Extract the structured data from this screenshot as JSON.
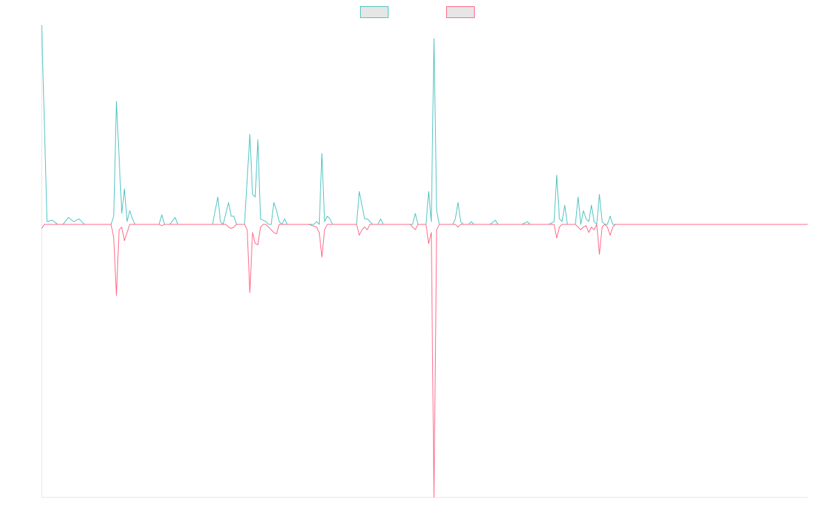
{
  "chart_data": {
    "type": "line",
    "title": "",
    "xlabel": "",
    "ylabel": "",
    "x_count": 288,
    "y_zero_fraction": 0.415,
    "ylim": [
      -100,
      73
    ],
    "grid": false,
    "legend_placement": "top-center",
    "series": [
      {
        "color": "#4bc0c0",
        "points": [
          [
            0,
            73
          ],
          [
            2,
            1
          ],
          [
            4,
            1.5
          ],
          [
            6,
            0
          ],
          [
            8,
            0
          ],
          [
            10,
            2.5
          ],
          [
            12,
            1
          ],
          [
            14,
            2
          ],
          [
            16,
            0
          ],
          [
            18,
            0
          ],
          [
            20,
            0
          ],
          [
            22,
            0
          ],
          [
            24,
            0
          ],
          [
            26,
            0
          ],
          [
            27,
            3
          ],
          [
            28,
            45
          ],
          [
            30,
            4
          ],
          [
            31,
            13
          ],
          [
            32,
            1
          ],
          [
            33,
            5
          ],
          [
            34,
            2
          ],
          [
            35,
            0
          ],
          [
            36,
            0
          ],
          [
            38,
            0
          ],
          [
            40,
            0
          ],
          [
            42,
            0
          ],
          [
            44,
            0
          ],
          [
            45,
            3.5
          ],
          [
            46,
            0
          ],
          [
            48,
            0
          ],
          [
            50,
            2.5
          ],
          [
            51,
            0
          ],
          [
            52,
            0
          ],
          [
            54,
            0
          ],
          [
            56,
            0
          ],
          [
            58,
            0
          ],
          [
            60,
            0
          ],
          [
            62,
            0
          ],
          [
            64,
            0
          ],
          [
            66,
            10
          ],
          [
            67,
            1
          ],
          [
            68,
            0
          ],
          [
            69,
            4
          ],
          [
            70,
            8
          ],
          [
            71,
            3
          ],
          [
            72,
            3
          ],
          [
            73,
            0
          ],
          [
            74,
            0
          ],
          [
            76,
            0
          ],
          [
            78,
            33
          ],
          [
            79,
            11
          ],
          [
            80,
            10
          ],
          [
            81,
            31
          ],
          [
            82,
            2
          ],
          [
            83,
            1.5
          ],
          [
            84,
            1
          ],
          [
            85,
            0
          ],
          [
            86,
            0
          ],
          [
            87,
            8
          ],
          [
            88,
            5
          ],
          [
            89,
            1
          ],
          [
            90,
            0
          ],
          [
            91,
            2
          ],
          [
            92,
            0
          ],
          [
            94,
            0
          ],
          [
            96,
            0
          ],
          [
            98,
            0
          ],
          [
            100,
            0
          ],
          [
            102,
            0
          ],
          [
            103,
            1
          ],
          [
            104,
            0
          ],
          [
            105,
            26
          ],
          [
            106,
            1
          ],
          [
            107,
            3
          ],
          [
            108,
            2
          ],
          [
            109,
            0
          ],
          [
            110,
            0
          ],
          [
            112,
            0
          ],
          [
            114,
            0
          ],
          [
            116,
            0
          ],
          [
            118,
            0
          ],
          [
            119,
            12
          ],
          [
            120,
            7
          ],
          [
            121,
            2
          ],
          [
            122,
            2
          ],
          [
            123,
            1
          ],
          [
            124,
            0
          ],
          [
            126,
            0
          ],
          [
            127,
            2
          ],
          [
            128,
            0
          ],
          [
            130,
            0
          ],
          [
            132,
            0
          ],
          [
            134,
            0
          ],
          [
            136,
            0
          ],
          [
            138,
            0
          ],
          [
            139,
            0
          ],
          [
            140,
            4
          ],
          [
            141,
            0
          ],
          [
            142,
            0
          ],
          [
            143,
            0
          ],
          [
            144,
            0
          ],
          [
            145,
            12
          ],
          [
            146,
            1
          ],
          [
            147,
            68
          ],
          [
            148,
            5
          ],
          [
            149,
            0
          ],
          [
            150,
            0
          ],
          [
            152,
            0
          ],
          [
            154,
            0
          ],
          [
            155,
            2
          ],
          [
            156,
            8
          ],
          [
            157,
            1
          ],
          [
            158,
            0
          ],
          [
            160,
            0
          ],
          [
            161,
            1
          ],
          [
            162,
            0
          ],
          [
            164,
            0
          ],
          [
            166,
            0
          ],
          [
            168,
            0
          ],
          [
            170,
            1.5
          ],
          [
            171,
            0
          ],
          [
            172,
            0
          ],
          [
            174,
            0
          ],
          [
            176,
            0
          ],
          [
            178,
            0
          ],
          [
            180,
            0
          ],
          [
            182,
            1
          ],
          [
            183,
            0
          ],
          [
            184,
            0
          ],
          [
            186,
            0
          ],
          [
            188,
            0
          ],
          [
            190,
            0
          ],
          [
            192,
            1
          ],
          [
            193,
            18
          ],
          [
            194,
            2
          ],
          [
            195,
            1
          ],
          [
            196,
            7
          ],
          [
            197,
            0
          ],
          [
            198,
            0
          ],
          [
            200,
            0
          ],
          [
            201,
            10
          ],
          [
            202,
            0
          ],
          [
            203,
            5
          ],
          [
            204,
            2
          ],
          [
            205,
            1
          ],
          [
            206,
            7
          ],
          [
            207,
            1
          ],
          [
            208,
            0
          ],
          [
            209,
            11
          ],
          [
            210,
            1
          ],
          [
            211,
            0
          ],
          [
            212,
            0
          ],
          [
            213,
            3
          ],
          [
            214,
            0
          ],
          [
            215,
            0
          ],
          [
            216,
            0
          ],
          [
            218,
            0
          ],
          [
            220,
            0
          ],
          [
            240,
            0
          ],
          [
            260,
            0
          ],
          [
            287,
            0
          ]
        ]
      },
      {
        "color": "#ff6384",
        "points": [
          [
            0,
            -1.5
          ],
          [
            1,
            0
          ],
          [
            2,
            0
          ],
          [
            6,
            0
          ],
          [
            8,
            0
          ],
          [
            10,
            0
          ],
          [
            14,
            0
          ],
          [
            16,
            0
          ],
          [
            20,
            0
          ],
          [
            24,
            0
          ],
          [
            26,
            0
          ],
          [
            27,
            -5
          ],
          [
            28,
            -26
          ],
          [
            29,
            -2
          ],
          [
            30,
            -1
          ],
          [
            31,
            -6
          ],
          [
            32,
            -3
          ],
          [
            33,
            0
          ],
          [
            34,
            0
          ],
          [
            40,
            0
          ],
          [
            44,
            0
          ],
          [
            45,
            -0.5
          ],
          [
            46,
            0
          ],
          [
            50,
            0
          ],
          [
            60,
            0
          ],
          [
            66,
            0
          ],
          [
            69,
            0
          ],
          [
            70,
            -1
          ],
          [
            71,
            -1.5
          ],
          [
            72,
            -1
          ],
          [
            73,
            0
          ],
          [
            76,
            0
          ],
          [
            77,
            -2
          ],
          [
            78,
            -25
          ],
          [
            79,
            -3
          ],
          [
            80,
            -7
          ],
          [
            81,
            -7.5
          ],
          [
            82,
            -1
          ],
          [
            83,
            0
          ],
          [
            84,
            0
          ],
          [
            85,
            -1
          ],
          [
            86,
            -2
          ],
          [
            87,
            -3
          ],
          [
            88,
            -3.5
          ],
          [
            89,
            0
          ],
          [
            90,
            0
          ],
          [
            100,
            0
          ],
          [
            103,
            -1
          ],
          [
            104,
            -3
          ],
          [
            105,
            -12
          ],
          [
            106,
            -2
          ],
          [
            107,
            0
          ],
          [
            108,
            0
          ],
          [
            110,
            0
          ],
          [
            118,
            0
          ],
          [
            119,
            -4
          ],
          [
            120,
            -2
          ],
          [
            121,
            -1
          ],
          [
            122,
            -2
          ],
          [
            123,
            0
          ],
          [
            124,
            0
          ],
          [
            130,
            0
          ],
          [
            138,
            0
          ],
          [
            139,
            -1
          ],
          [
            140,
            -2
          ],
          [
            141,
            0
          ],
          [
            142,
            0
          ],
          [
            143,
            0
          ],
          [
            144,
            0
          ],
          [
            145,
            -7
          ],
          [
            146,
            -3
          ],
          [
            147,
            -100
          ],
          [
            148,
            -2
          ],
          [
            149,
            0
          ],
          [
            150,
            0
          ],
          [
            152,
            0
          ],
          [
            154,
            0
          ],
          [
            155,
            0
          ],
          [
            156,
            -1
          ],
          [
            157,
            0
          ],
          [
            158,
            0
          ],
          [
            160,
            0
          ],
          [
            170,
            0
          ],
          [
            180,
            0
          ],
          [
            190,
            0
          ],
          [
            192,
            0
          ],
          [
            193,
            -5
          ],
          [
            194,
            -1
          ],
          [
            195,
            0
          ],
          [
            196,
            0
          ],
          [
            200,
            0
          ],
          [
            201,
            -1
          ],
          [
            202,
            -2
          ],
          [
            203,
            -1
          ],
          [
            204,
            -0.5
          ],
          [
            205,
            -3
          ],
          [
            206,
            -1
          ],
          [
            207,
            -2
          ],
          [
            208,
            0
          ],
          [
            209,
            -11
          ],
          [
            210,
            -1
          ],
          [
            211,
            0
          ],
          [
            212,
            -1
          ],
          [
            213,
            -4
          ],
          [
            214,
            -1
          ],
          [
            215,
            0
          ],
          [
            216,
            0
          ],
          [
            220,
            0
          ],
          [
            240,
            0
          ],
          [
            260,
            0
          ],
          [
            287,
            0
          ]
        ]
      }
    ]
  }
}
